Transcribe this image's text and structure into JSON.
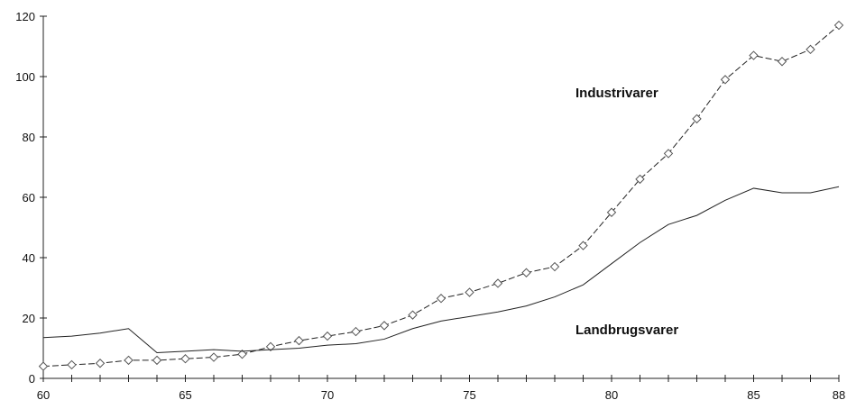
{
  "chart_data": {
    "type": "line",
    "x": [
      60,
      61,
      62,
      63,
      64,
      65,
      66,
      67,
      68,
      69,
      70,
      71,
      72,
      73,
      74,
      75,
      76,
      77,
      78,
      79,
      80,
      81,
      82,
      83,
      84,
      85,
      86,
      87,
      88
    ],
    "xlim": [
      60,
      88
    ],
    "ylim": [
      0,
      120
    ],
    "x_ticks": [
      60,
      65,
      70,
      75,
      80,
      85,
      88
    ],
    "x_tick_labels": [
      "60",
      "65",
      "70",
      "75",
      "80",
      "85",
      "88"
    ],
    "y_ticks": [
      0,
      20,
      40,
      60,
      80,
      100,
      120
    ],
    "y_tick_labels": [
      "0",
      "20",
      "40",
      "60",
      "80",
      "100",
      "120"
    ],
    "grid": false,
    "series": [
      {
        "name": "Industrivarer",
        "style": "dashed-diamond",
        "values": [
          4,
          4.5,
          5,
          6,
          6,
          6.5,
          7,
          8,
          10.5,
          12.5,
          14,
          15.5,
          17.5,
          21,
          26.5,
          28.5,
          31.5,
          35,
          37,
          44,
          55,
          66,
          74.5,
          86,
          99,
          107,
          105,
          109,
          117
        ]
      },
      {
        "name": "Landbrugsvarer",
        "style": "solid",
        "values": [
          13.5,
          14,
          15,
          16.5,
          8.5,
          9,
          9.5,
          9,
          9.5,
          10,
          11,
          11.5,
          13,
          16.5,
          19,
          20.5,
          22,
          24,
          27,
          31,
          38,
          45,
          51,
          54,
          59,
          63,
          61.5,
          61.5,
          63.5
        ]
      }
    ]
  }
}
